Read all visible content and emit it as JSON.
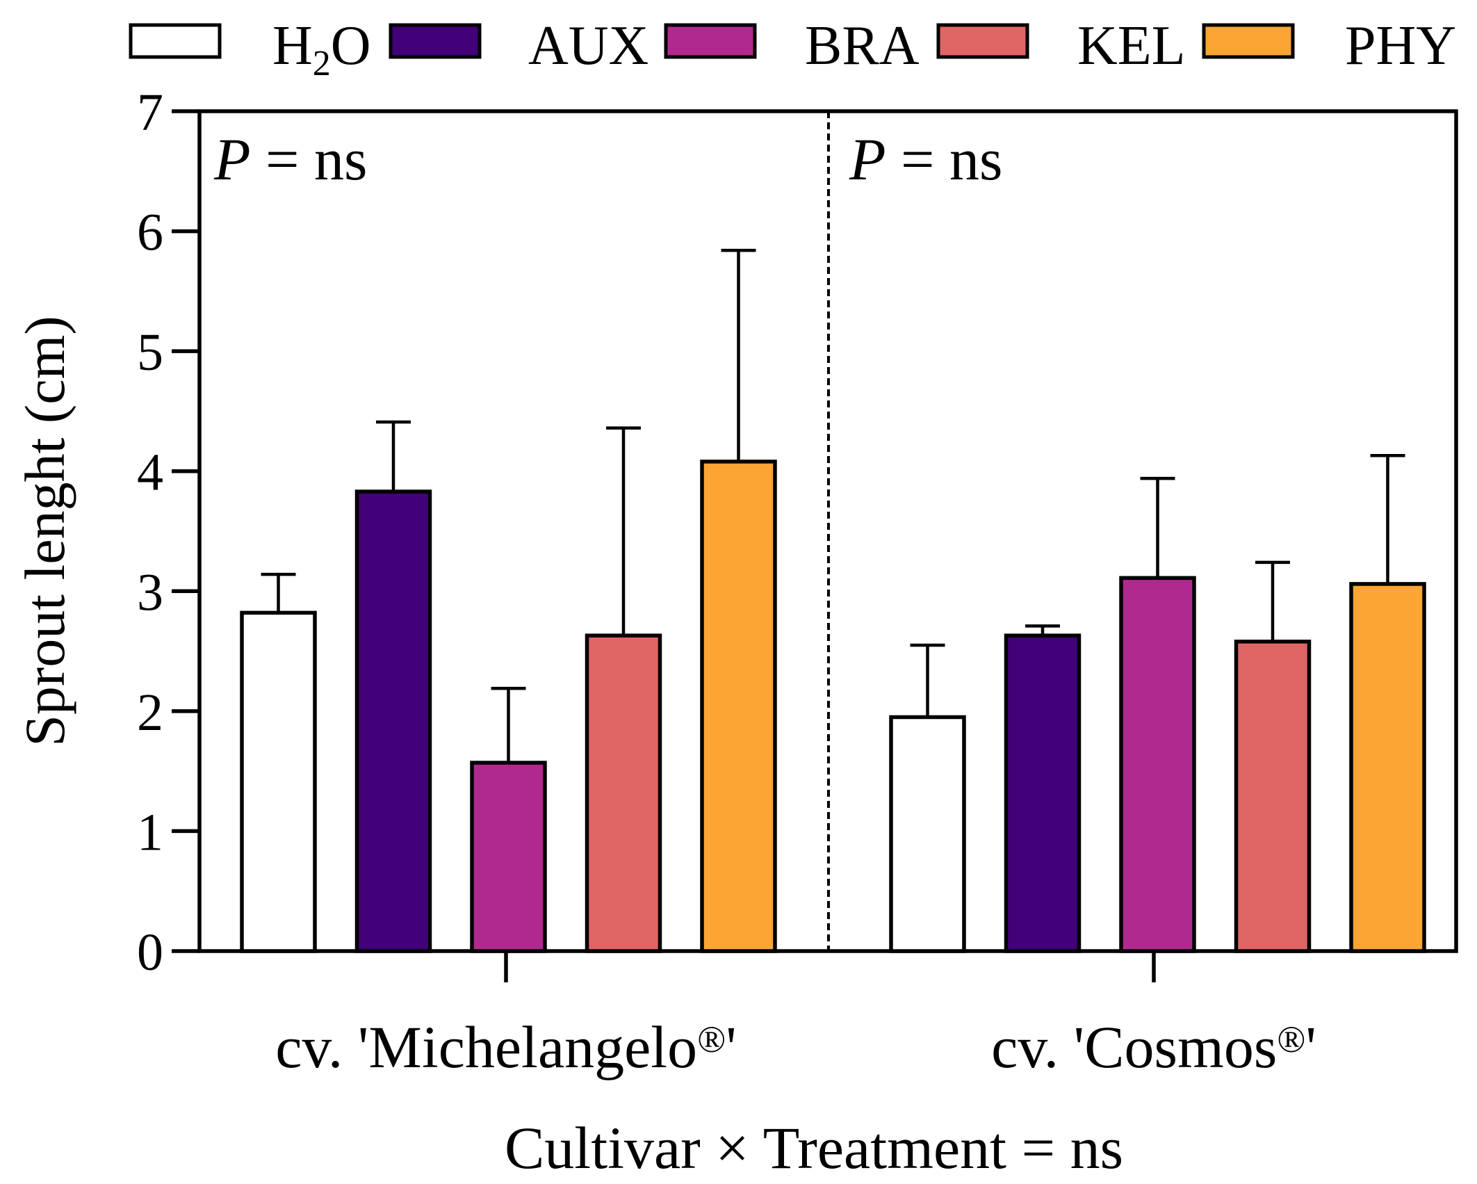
{
  "chart_data": {
    "type": "bar",
    "title": "",
    "ylabel": "Sprout lenght (cm)",
    "xlabel": "Cultivar × Treatment = ns",
    "ylim": [
      0,
      7
    ],
    "yticks": [
      0,
      1,
      2,
      3,
      4,
      5,
      6,
      7
    ],
    "grid": false,
    "legend_position": "top",
    "error_bars": "upper only",
    "divider": "dashed vertical line between cultivars",
    "treatments": [
      {
        "key": "H2O",
        "label_main": "H",
        "label_sub": "2",
        "label_tail": "O",
        "color": "#ffffff"
      },
      {
        "key": "AUX",
        "label_main": "AUX",
        "color": "#420079"
      },
      {
        "key": "BRA",
        "label_main": "BRA",
        "color": "#b0298f"
      },
      {
        "key": "KEL",
        "label_main": "KEL",
        "color": "#e06565"
      },
      {
        "key": "PHY",
        "label_main": "PHY",
        "color": "#fca535"
      }
    ],
    "categories": [
      "cv. 'Michelangelo®'",
      "cv. 'Cosmos®'"
    ],
    "groups": [
      {
        "label_main": "cv. 'Michelangelo",
        "label_sup": "®",
        "label_tail": "'",
        "annotation_italic": "P",
        "annotation_rest": " = ns",
        "values": [
          2.82,
          3.83,
          1.57,
          2.63,
          4.08
        ],
        "errors": [
          0.32,
          0.58,
          0.62,
          1.73,
          1.76
        ]
      },
      {
        "label_main": "cv. 'Cosmos",
        "label_sup": "®",
        "label_tail": "'",
        "annotation_italic": "P",
        "annotation_rest": " = ns",
        "values": [
          1.95,
          2.63,
          3.11,
          2.58,
          3.06
        ],
        "errors": [
          0.6,
          0.08,
          0.83,
          0.66,
          1.07
        ]
      }
    ]
  }
}
